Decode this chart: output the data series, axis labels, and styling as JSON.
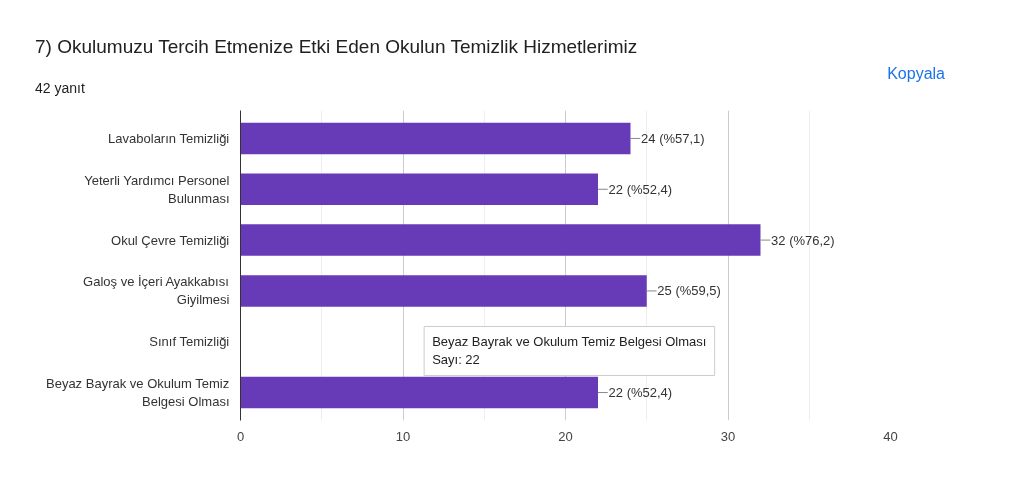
{
  "chart_data": {
    "type": "bar",
    "orientation": "horizontal",
    "title": "7) Okulumuzu Tercih Etmenize Etki Eden Okulun Temizlik  Hizmetlerimiz",
    "subtitle": "42 yanıt",
    "categories": [
      "Lavaboların Temizliği",
      "Yeterli Yardımcı Personel Bulunması",
      "Okul Çevre Temizliği",
      "Galoş ve İçeri Ayakkabısı Giyilmesi",
      "Sınıf Temizliği",
      "Beyaz Bayrak ve Okulum Temiz Belgesi Olması"
    ],
    "values": [
      24,
      22,
      32,
      25,
      null,
      22
    ],
    "value_labels": [
      "24 (%57,1)",
      "22 (%52,4)",
      "32 (%76,2)",
      "25 (%59,5)",
      null,
      "22 (%52,4)"
    ],
    "color": "#673ab7",
    "xlim": [
      0,
      40
    ],
    "xticks": [
      0,
      10,
      20,
      30,
      40
    ],
    "grid": "x",
    "annotations": [
      "Kopyala",
      "Beyaz Bayrak ve Okulum Temiz Belgesi Olması",
      "Sayı: 22"
    ]
  }
}
